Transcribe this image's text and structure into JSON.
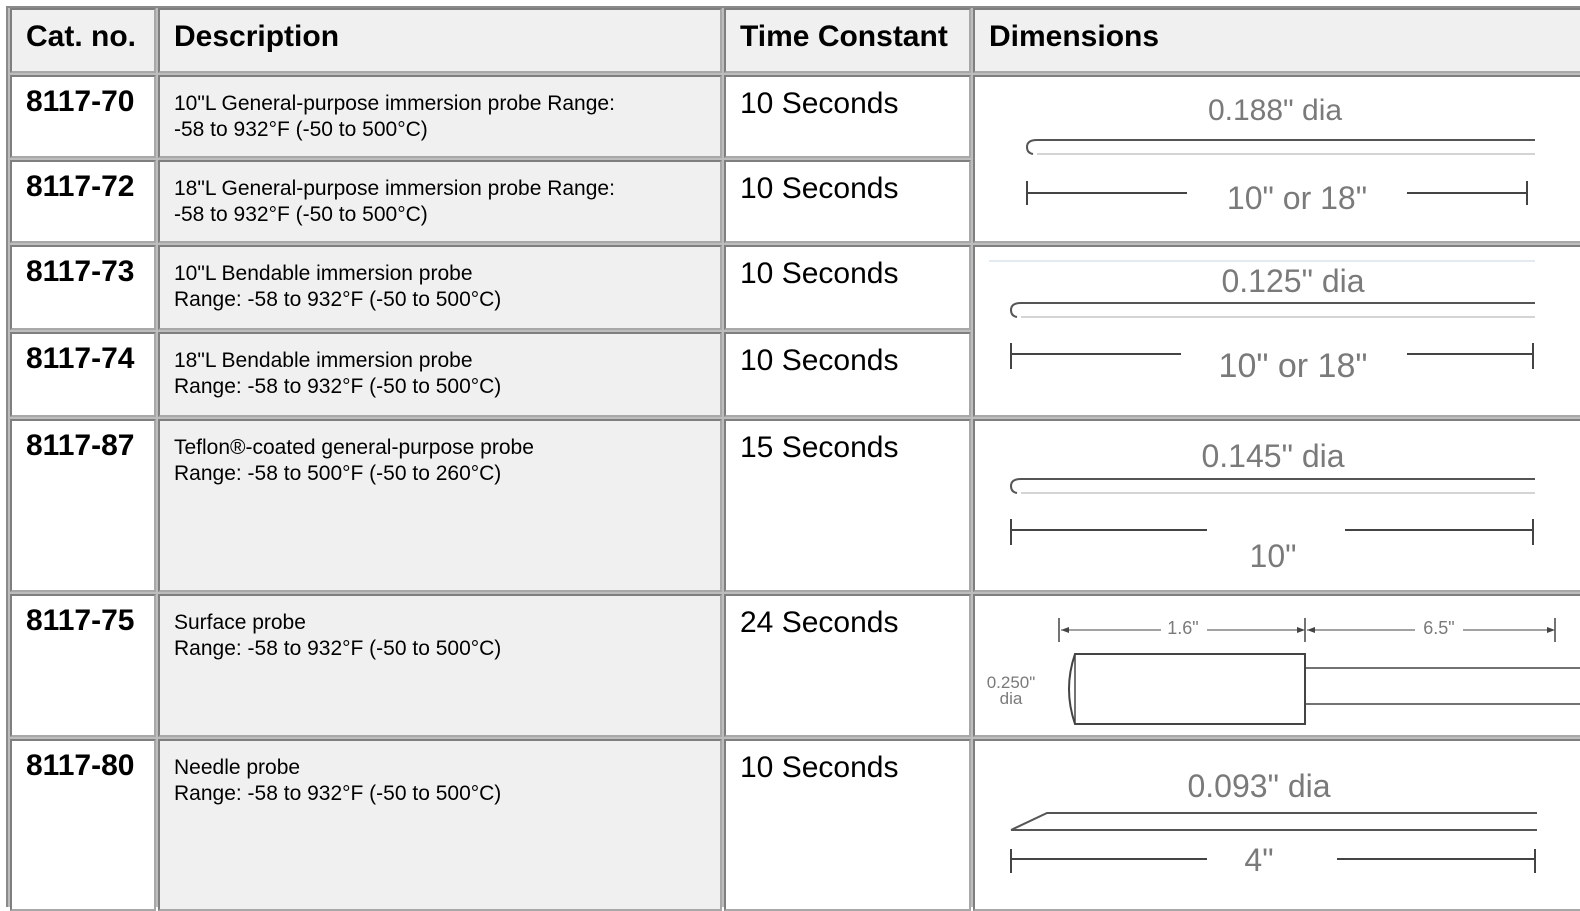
{
  "headers": {
    "cat_no": "Cat. no.",
    "description": "Description",
    "time_constant": "Time Constant",
    "dimensions": "Dimensions"
  },
  "rows": [
    {
      "cat": "8117-70",
      "desc_line1": "10\"L General-purpose immersion probe Range:",
      "desc_line2": "-58 to 932°F (-50 to 500°C)",
      "time": "10 Seconds"
    },
    {
      "cat": "8117-72",
      "desc_line1": "18\"L General-purpose immersion probe Range:",
      "desc_line2": "-58 to 932°F (-50 to 500°C)",
      "time": "10 Seconds"
    },
    {
      "cat": "8117-73",
      "desc_line1": "10\"L Bendable immersion probe",
      "desc_line2": "Range: -58 to 932°F (-50 to 500°C)",
      "time": "10 Seconds"
    },
    {
      "cat": "8117-74",
      "desc_line1": "18\"L Bendable immersion probe",
      "desc_line2": "Range: -58 to 932°F (-50 to 500°C)",
      "time": "10 Seconds"
    },
    {
      "cat": "8117-87",
      "desc_line1": "Teflon®-coated general-purpose probe",
      "desc_line2": "Range: -58 to 500°F (-50 to 260°C)",
      "time": "15 Seconds"
    },
    {
      "cat": "8117-75",
      "desc_line1": "Surface probe",
      "desc_line2": "Range: -58 to 932°F (-50 to 500°C)",
      "time": "24 Seconds"
    },
    {
      "cat": "8117-80",
      "desc_line1": "Needle probe",
      "desc_line2": "Range: -58 to 932°F (-50 to 500°C)",
      "time": "10 Seconds"
    }
  ],
  "diagrams": {
    "d1": {
      "dia": "0.188\" dia",
      "length": "10\" or 18\""
    },
    "d2": {
      "dia": "0.125\" dia",
      "length": "10\" or 18\""
    },
    "d3": {
      "dia": "0.145\" dia",
      "length": "10\""
    },
    "d4": {
      "dia_top": "0.250\"",
      "dia_bottom": "dia",
      "len1": "1.6\"",
      "len2": "6.5\""
    },
    "d5": {
      "dia": "0.093\" dia",
      "length": "4\""
    }
  },
  "colors": {
    "header_bg": "#f0f0f0",
    "desc_bg": "#f0f0f0",
    "grid": "#bdbdbd"
  }
}
